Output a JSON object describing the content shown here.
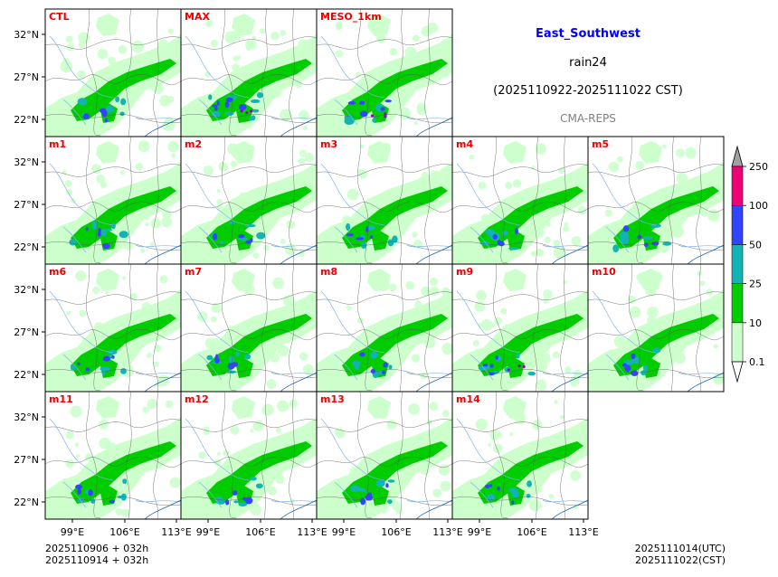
{
  "header": {
    "title": "East_Southwest",
    "variable": "rain24",
    "period": "(2025110922-2025111022 CST)",
    "model": "CMA-REPS"
  },
  "footer": {
    "init_utc": "2025110906  +  032h",
    "init_cst": "2025110914  +  032h",
    "valid_utc": "2025111014(UTC)",
    "valid_cst": "2025111022(CST)"
  },
  "axes": {
    "lat_labels": [
      "32°N",
      "27°N",
      "22°N"
    ],
    "lon_labels": [
      "99°E",
      "106°E",
      "113°E"
    ]
  },
  "panels": [
    {
      "label": "CTL",
      "row": 0,
      "col": 0,
      "intensity": 1.0,
      "seed": 3
    },
    {
      "label": "MAX",
      "row": 0,
      "col": 1,
      "intensity": 1.5,
      "seed": 7
    },
    {
      "label": "MESO_1km",
      "row": 0,
      "col": 2,
      "intensity": 1.15,
      "seed": 11
    },
    {
      "label": "m1",
      "row": 1,
      "col": 0,
      "intensity": 1.0,
      "seed": 13
    },
    {
      "label": "m2",
      "row": 1,
      "col": 1,
      "intensity": 1.05,
      "seed": 17
    },
    {
      "label": "m3",
      "row": 1,
      "col": 2,
      "intensity": 1.0,
      "seed": 19
    },
    {
      "label": "m4",
      "row": 1,
      "col": 3,
      "intensity": 1.0,
      "seed": 23
    },
    {
      "label": "m5",
      "row": 1,
      "col": 4,
      "intensity": 0.95,
      "seed": 29
    },
    {
      "label": "m6",
      "row": 2,
      "col": 0,
      "intensity": 0.95,
      "seed": 31
    },
    {
      "label": "m7",
      "row": 2,
      "col": 1,
      "intensity": 1.0,
      "seed": 37
    },
    {
      "label": "m8",
      "row": 2,
      "col": 2,
      "intensity": 1.05,
      "seed": 41
    },
    {
      "label": "m9",
      "row": 2,
      "col": 3,
      "intensity": 1.1,
      "seed": 43
    },
    {
      "label": "m10",
      "row": 2,
      "col": 4,
      "intensity": 1.0,
      "seed": 47
    },
    {
      "label": "m11",
      "row": 3,
      "col": 0,
      "intensity": 0.95,
      "seed": 53
    },
    {
      "label": "m12",
      "row": 3,
      "col": 1,
      "intensity": 1.0,
      "seed": 59
    },
    {
      "label": "m13",
      "row": 3,
      "col": 2,
      "intensity": 1.05,
      "seed": 61
    },
    {
      "label": "m14",
      "row": 3,
      "col": 3,
      "intensity": 0.9,
      "seed": 67
    }
  ],
  "colorbar": {
    "levels": [
      "0.1",
      "10",
      "25",
      "50",
      "100",
      "250"
    ],
    "colors": [
      "#ffffff",
      "#ccffcc",
      "#00cc00",
      "#11b3b3",
      "#3344ff",
      "#ee0077",
      "#a0a0a0"
    ]
  },
  "colors": {
    "panel_label": "#ee0000",
    "light_rain": "#ccffcc",
    "moderate_rain": "#00cc00",
    "heavy_rain": "#11b3b3",
    "rainstorm": "#3344ff",
    "heavy_rainstorm": "#ee0077",
    "extreme": "#9900cc",
    "river": "#7fb3e6",
    "boundary": "#555555"
  }
}
